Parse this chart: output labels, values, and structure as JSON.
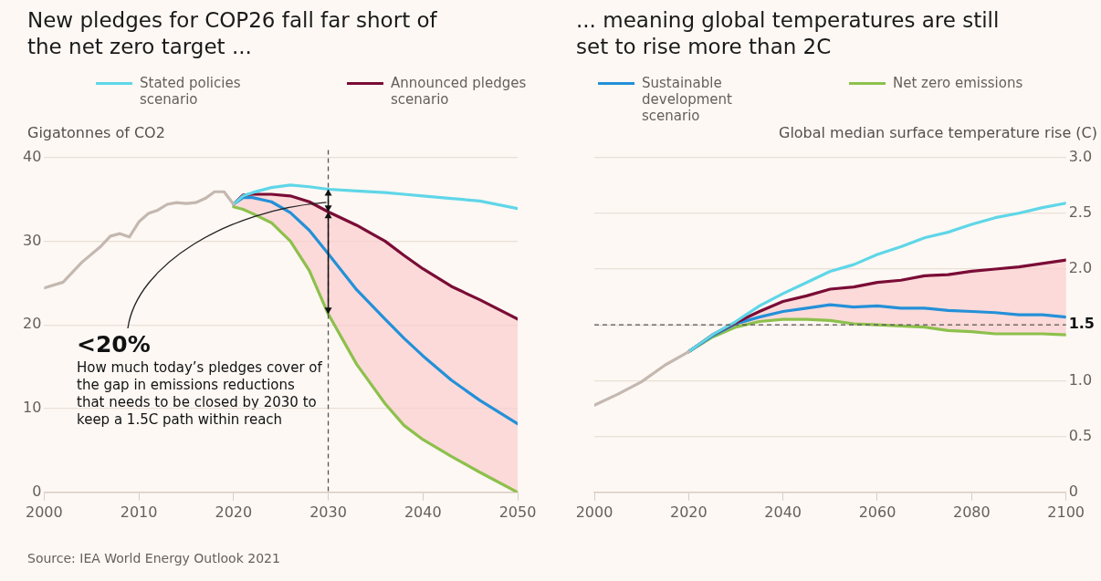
{
  "chart_data": [
    {
      "type": "line",
      "title": "New pledges for COP26 fall far short of the net zero target ...",
      "ylabel": "Gigatonnes of CO2",
      "series": [
        {
          "color": "#c4b8b0",
          "x": [
            2000,
            2002,
            2004,
            2006,
            2007,
            2008,
            2009,
            2010,
            2011,
            2012,
            2013,
            2014,
            2015,
            2016,
            2017,
            2018,
            2019,
            2020
          ],
          "values": [
            24.4,
            25.1,
            27.5,
            29.4,
            30.6,
            30.9,
            30.5,
            32.3,
            33.3,
            33.7,
            34.4,
            34.6,
            34.5,
            34.6,
            35.1,
            35.9,
            35.9,
            34.4
          ]
        },
        {
          "name": "Stated policies scenario",
          "color": "#5fd6e8",
          "x": [
            2020,
            2021,
            2022,
            2024,
            2026,
            2028,
            2030,
            2033,
            2036,
            2038,
            2040,
            2043,
            2046,
            2050
          ],
          "values": [
            34.4,
            35.4,
            35.8,
            36.4,
            36.7,
            36.5,
            36.2,
            36.0,
            35.8,
            35.6,
            35.4,
            35.1,
            34.8,
            33.9
          ]
        },
        {
          "name": "Announced pledges scenario",
          "color": "#7a0c36",
          "x": [
            2020,
            2021,
            2022,
            2024,
            2026,
            2028,
            2030,
            2033,
            2036,
            2038,
            2040,
            2043,
            2046,
            2050
          ],
          "values": [
            34.4,
            35.5,
            35.6,
            35.6,
            35.4,
            34.7,
            33.5,
            31.9,
            30.0,
            28.3,
            26.7,
            24.6,
            23.0,
            20.7
          ]
        },
        {
          "name": "Sustainable development scenario",
          "color": "#2490d8",
          "x": [
            2020,
            2021,
            2022,
            2024,
            2026,
            2028,
            2030,
            2033,
            2036,
            2038,
            2040,
            2043,
            2046,
            2050
          ],
          "values": [
            34.4,
            35.2,
            35.2,
            34.7,
            33.4,
            31.3,
            28.5,
            24.2,
            20.7,
            18.4,
            16.3,
            13.4,
            11.0,
            8.2
          ],
          "lower": [
            34.1,
            33.8,
            33.3,
            32.2,
            30.0,
            26.5,
            21.3,
            15.3,
            10.6,
            8.0,
            6.3,
            4.3,
            2.4,
            0.0
          ],
          "upper": [
            34.4,
            35.5,
            35.6,
            35.6,
            35.4,
            34.7,
            33.5,
            31.9,
            30.0,
            28.3,
            26.7,
            24.6,
            23.0,
            20.7
          ]
        },
        {
          "name": "Net zero emissions",
          "color": "#8dc04c",
          "x": [
            2020,
            2021,
            2022,
            2024,
            2026,
            2028,
            2030,
            2033,
            2036,
            2038,
            2040,
            2043,
            2046,
            2050
          ],
          "values": [
            34.1,
            33.8,
            33.3,
            32.2,
            30.0,
            26.5,
            21.3,
            15.3,
            10.6,
            8.0,
            6.3,
            4.3,
            2.4,
            0.0
          ]
        }
      ],
      "xlim": [
        2000,
        2050
      ],
      "xticks": [
        2000,
        2010,
        2020,
        2030,
        2040,
        2050
      ],
      "ylim": [
        0,
        40
      ],
      "yticks": [
        0,
        10,
        20,
        30,
        40
      ],
      "ref_lines": [
        {
          "axis": "x",
          "value": 2030,
          "line_style": "dashed",
          "color": "#555555"
        }
      ],
      "annotations": [
        "<20%",
        "How much today’s pledges cover of the gap in emissions reductions that needs to be closed by 2030 to keep a 1.5C path within reach",
        "Source: IEA World Energy Outlook 2021"
      ],
      "grid": "y",
      "legend": "top",
      "marker": "none",
      "line_style": "solid"
    },
    {
      "type": "line",
      "title": "... meaning global temperatures are still set to rise more than 2C",
      "ylabel": "Global median surface temperature rise (C)",
      "series": [
        {
          "color": "#c4b8b0",
          "x": [
            2000,
            2005,
            2010,
            2015,
            2020
          ],
          "values": [
            0.78,
            0.88,
            0.99,
            1.14,
            1.26
          ]
        },
        {
          "color": "#5fd6e8",
          "x": [
            2020,
            2025,
            2030,
            2035,
            2040,
            2045,
            2050,
            2055,
            2060,
            2065,
            2070,
            2075,
            2080,
            2085,
            2090,
            2095,
            2100
          ],
          "values": [
            1.26,
            1.41,
            1.53,
            1.67,
            1.78,
            1.88,
            1.98,
            2.04,
            2.13,
            2.2,
            2.28,
            2.33,
            2.4,
            2.46,
            2.5,
            2.55,
            2.59
          ]
        },
        {
          "color": "#7a0c36",
          "x": [
            2020,
            2025,
            2030,
            2035,
            2040,
            2045,
            2050,
            2055,
            2060,
            2065,
            2070,
            2075,
            2080,
            2085,
            2090,
            2095,
            2100
          ],
          "values": [
            1.26,
            1.41,
            1.52,
            1.62,
            1.71,
            1.76,
            1.82,
            1.84,
            1.88,
            1.9,
            1.94,
            1.95,
            1.98,
            2.0,
            2.02,
            2.05,
            2.08
          ]
        },
        {
          "color": "#2490d8",
          "x": [
            2020,
            2025,
            2030,
            2035,
            2040,
            2045,
            2050,
            2055,
            2060,
            2065,
            2070,
            2075,
            2080,
            2085,
            2090,
            2095,
            2100
          ],
          "values": [
            1.26,
            1.4,
            1.51,
            1.57,
            1.62,
            1.65,
            1.68,
            1.66,
            1.67,
            1.65,
            1.65,
            1.63,
            1.62,
            1.61,
            1.59,
            1.59,
            1.57
          ],
          "lower": [
            1.26,
            1.39,
            1.48,
            1.53,
            1.55,
            1.55,
            1.54,
            1.51,
            1.5,
            1.49,
            1.48,
            1.45,
            1.44,
            1.42,
            1.42,
            1.42,
            1.41
          ],
          "upper": [
            1.26,
            1.41,
            1.52,
            1.62,
            1.71,
            1.76,
            1.82,
            1.84,
            1.88,
            1.9,
            1.94,
            1.95,
            1.98,
            2.0,
            2.02,
            2.05,
            2.08
          ]
        },
        {
          "color": "#8dc04c",
          "x": [
            2020,
            2025,
            2030,
            2035,
            2040,
            2045,
            2050,
            2055,
            2060,
            2065,
            2070,
            2075,
            2080,
            2085,
            2090,
            2095,
            2100
          ],
          "values": [
            1.26,
            1.39,
            1.48,
            1.53,
            1.55,
            1.55,
            1.54,
            1.51,
            1.5,
            1.49,
            1.48,
            1.45,
            1.44,
            1.42,
            1.42,
            1.42,
            1.41
          ]
        }
      ],
      "xlim": [
        2000,
        2100
      ],
      "xticks": [
        2000,
        2020,
        2040,
        2060,
        2080,
        2100
      ],
      "ylim": [
        0,
        3
      ],
      "yticks": [
        0,
        {
          "value": 0.5,
          "label": "0.5"
        },
        {
          "value": 1,
          "label": "1.0"
        },
        1.5,
        {
          "value": 2,
          "label": "2.0"
        },
        2.5,
        {
          "value": 3,
          "label": "3.0"
        }
      ],
      "ref_lines": [
        {
          "axis": "y",
          "value": 1.5,
          "line_style": "dashed",
          "color": "#555555"
        }
      ],
      "grid": "y",
      "marker": "none",
      "line_style": "solid"
    }
  ]
}
